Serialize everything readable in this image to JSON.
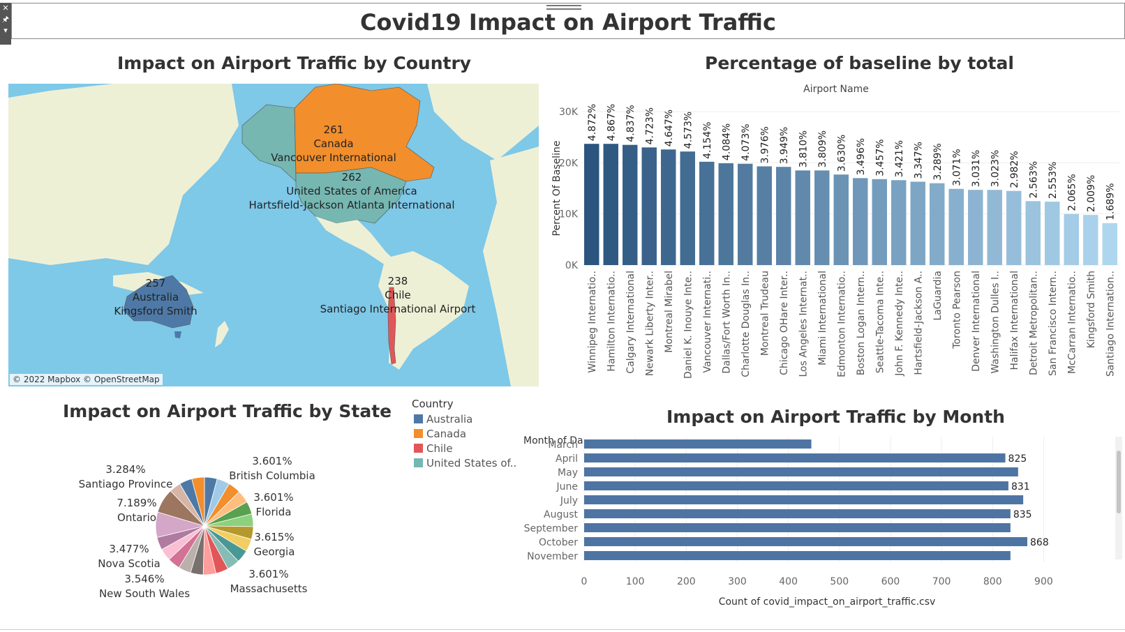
{
  "dashboard": {
    "title": "Covid19 Impact on Airport Traffic"
  },
  "toolbox": {
    "close_icon": "✕",
    "pin_icon": "🖈",
    "menu_icon": "▾"
  },
  "map": {
    "title": "Impact on Airport Traffic by Country",
    "credit": "© 2022 Mapbox © OpenStreetMap",
    "markers": [
      {
        "count": "261",
        "country": "Canada",
        "airport": "Vancouver International"
      },
      {
        "count": "262",
        "country": "United States of America",
        "airport": "Hartsfield-Jackson Atlanta International"
      },
      {
        "count": "257",
        "country": "Australia",
        "airport": "Kingsford Smith"
      },
      {
        "count": "238",
        "country": "Chile",
        "airport": "Santiago International Airport"
      }
    ]
  },
  "legend": {
    "title": "Country",
    "items": [
      {
        "label": "Australia",
        "color": "#4e79a7"
      },
      {
        "label": "Canada",
        "color": "#f28e2b"
      },
      {
        "label": "Chile",
        "color": "#e15759"
      },
      {
        "label": "United States of..",
        "color": "#76b7b2"
      }
    ]
  },
  "pie": {
    "title": "Impact on Airport Traffic by State",
    "labels": [
      {
        "pct": "3.601%",
        "name": "British Columbia"
      },
      {
        "pct": "3.601%",
        "name": "Florida"
      },
      {
        "pct": "3.615%",
        "name": "Georgia"
      },
      {
        "pct": "3.601%",
        "name": "Massachusetts"
      },
      {
        "pct": "3.546%",
        "name": "New South Wales"
      },
      {
        "pct": "3.477%",
        "name": "Nova Scotia"
      },
      {
        "pct": "7.189%",
        "name": "Ontario"
      },
      {
        "pct": "3.284%",
        "name": "Santiago Province"
      }
    ]
  },
  "chart_data": [
    {
      "type": "bar",
      "title": "Percentage of baseline by total",
      "header": "Airport Name",
      "ylabel": "Percent Of Baseline",
      "ylim": [
        0,
        30000
      ],
      "yticks": [
        "0K",
        "10K",
        "20K",
        "30K"
      ],
      "categories": [
        "Winnipeg Internatio..",
        "Hamilton Internatio..",
        "Calgary International",
        "Newark Liberty Inter..",
        "Montreal Mirabel",
        "Daniel K. Inouye Inte..",
        "Vancouver Internati..",
        "Dallas/Fort Worth In..",
        "Charlotte Douglas In..",
        "Montreal Trudeau",
        "Chicago OHare Inter..",
        "Los Angeles Internat..",
        "Miami International",
        "Edmonton Internatio..",
        "Boston Logan Intern..",
        "Seattle-Tacoma Inte..",
        "John F. Kennedy Inte..",
        "Hartsfield-Jackson A..",
        "LaGuardia",
        "Toronto Pearson",
        "Denver International",
        "Washington Dulles I..",
        "Halifax International",
        "Detroit Metropolitan..",
        "San Francisco Intern..",
        "McCarran Internatio..",
        "Kingsford Smith",
        "Santiago Internation.."
      ],
      "values": [
        23700,
        23700,
        23500,
        23000,
        22600,
        22200,
        20200,
        19900,
        19800,
        19300,
        19200,
        18500,
        18500,
        17700,
        17000,
        16800,
        16600,
        16300,
        16000,
        14900,
        14700,
        14700,
        14500,
        12500,
        12400,
        10000,
        9800,
        8200
      ],
      "data_labels": [
        "4.872%",
        "4.867%",
        "4.837%",
        "4.723%",
        "4.647%",
        "4.573%",
        "4.154%",
        "4.084%",
        "4.073%",
        "3.976%",
        "3.949%",
        "3.810%",
        "3.809%",
        "3.630%",
        "3.496%",
        "3.457%",
        "3.421%",
        "3.347%",
        "3.289%",
        "3.071%",
        "3.031%",
        "3.023%",
        "2.982%",
        "2.563%",
        "2.553%",
        "2.065%",
        "2.009%",
        "1.689%"
      ]
    },
    {
      "type": "bar",
      "orientation": "horizontal",
      "title": "Impact on Airport Traffic by Month",
      "row_header": "Month of Da..",
      "xlabel": "Count of covid_impact_on_airport_traffic.csv",
      "xlim": [
        0,
        950
      ],
      "xticks": [
        0,
        100,
        200,
        300,
        400,
        500,
        600,
        700,
        800,
        900
      ],
      "categories": [
        "March",
        "April",
        "May",
        "June",
        "July",
        "August",
        "September",
        "October",
        "November"
      ],
      "values": [
        445,
        825,
        850,
        831,
        860,
        835,
        835,
        868,
        835
      ],
      "data_labels": [
        "",
        "825",
        "",
        "831",
        "",
        "835",
        "",
        "868",
        ""
      ]
    },
    {
      "type": "pie",
      "title": "Impact on Airport Traffic by State",
      "slices": [
        {
          "label": "British Columbia",
          "value": 3.601,
          "color": "#4e79a7"
        },
        {
          "label": "s2",
          "value": 3.6,
          "color": "#a0cbe8"
        },
        {
          "label": "Florida",
          "value": 3.601,
          "color": "#f28e2b"
        },
        {
          "label": "s4",
          "value": 3.6,
          "color": "#ffbe7d"
        },
        {
          "label": "s5",
          "value": 3.6,
          "color": "#59a14f"
        },
        {
          "label": "s6",
          "value": 3.6,
          "color": "#8cd17d"
        },
        {
          "label": "Georgia",
          "value": 3.615,
          "color": "#b6992d"
        },
        {
          "label": "s8",
          "value": 3.6,
          "color": "#f1ce63"
        },
        {
          "label": "s9",
          "value": 3.6,
          "color": "#499894"
        },
        {
          "label": "Massachusetts",
          "value": 3.601,
          "color": "#86bcb6"
        },
        {
          "label": "s11",
          "value": 3.6,
          "color": "#e15759"
        },
        {
          "label": "s12",
          "value": 3.6,
          "color": "#ff9d9a"
        },
        {
          "label": "s13",
          "value": 3.6,
          "color": "#79706e"
        },
        {
          "label": "New South Wales",
          "value": 3.546,
          "color": "#bab0ac"
        },
        {
          "label": "s15",
          "value": 3.6,
          "color": "#d37295"
        },
        {
          "label": "Nova Scotia",
          "value": 3.477,
          "color": "#fabfd2"
        },
        {
          "label": "s17",
          "value": 3.6,
          "color": "#b07aa1"
        },
        {
          "label": "Ontario",
          "value": 7.189,
          "color": "#d4a6c8"
        },
        {
          "label": "s19",
          "value": 7.0,
          "color": "#9d7660"
        },
        {
          "label": "Santiago Province",
          "value": 3.284,
          "color": "#d7b5a6"
        },
        {
          "label": "s21",
          "value": 3.6,
          "color": "#4e79a7"
        },
        {
          "label": "s22",
          "value": 3.6,
          "color": "#f28e2b"
        }
      ]
    }
  ]
}
